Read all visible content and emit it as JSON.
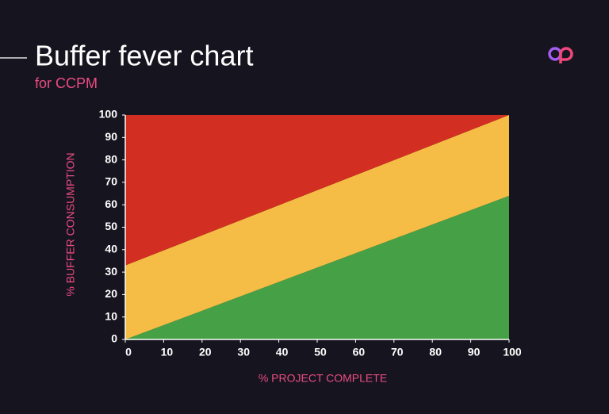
{
  "chart_data": {
    "type": "area",
    "title": "Buffer fever chart",
    "subtitle": "for CCPM",
    "x_label": "% PROJECT COMPLETE",
    "y_label": "% BUFFER CONSUMPTION",
    "x": [
      0,
      100
    ],
    "series": [
      {
        "color": "#46a046",
        "values": [
          0,
          64
        ]
      },
      {
        "color": "#f5bd45",
        "values": [
          33,
          100
        ]
      },
      {
        "color": "#d22f22",
        "values": [
          100,
          100
        ]
      }
    ],
    "xlim": [
      0,
      100
    ],
    "ylim": [
      0,
      100
    ],
    "xticks": [
      0,
      10,
      20,
      30,
      40,
      50,
      60,
      70,
      80,
      90,
      100
    ],
    "yticks": [
      0,
      10,
      20,
      30,
      40,
      50,
      60,
      70,
      80,
      90,
      100
    ]
  }
}
